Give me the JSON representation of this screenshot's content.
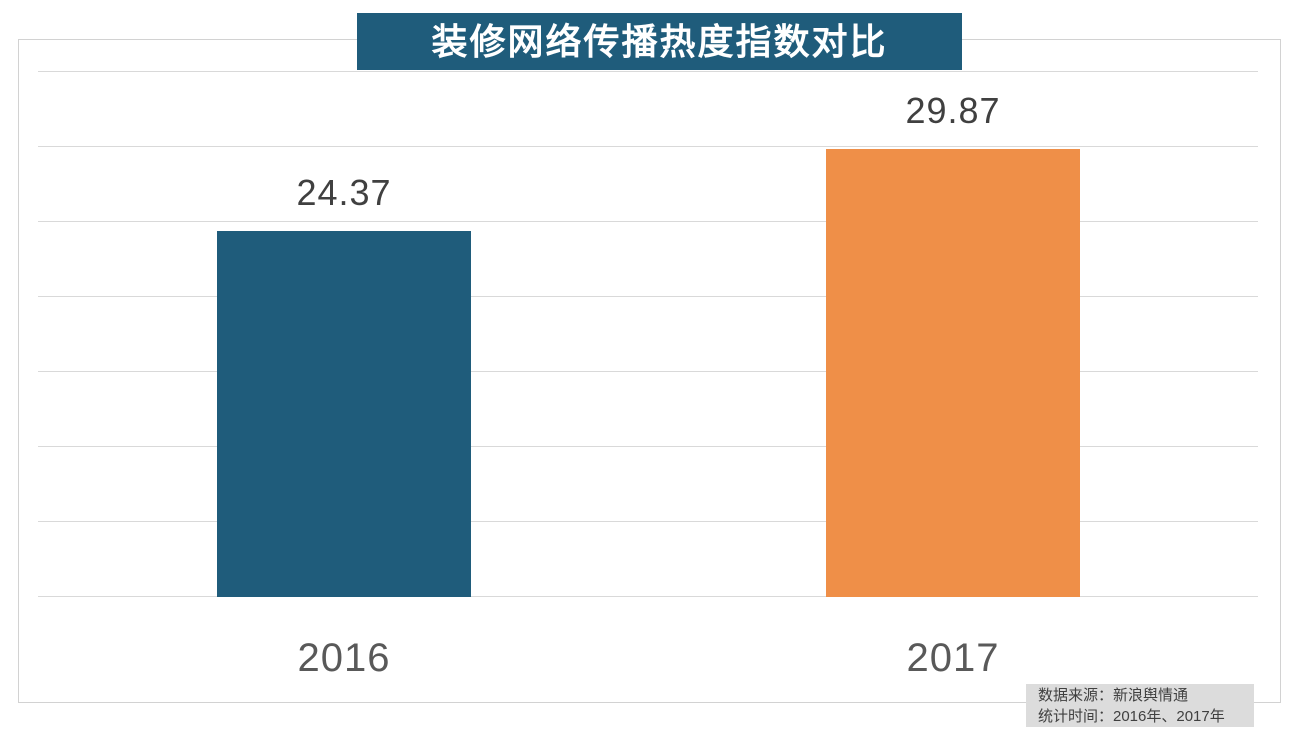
{
  "title": "装修网络传播热度指数对比",
  "chart_data": {
    "type": "bar",
    "title": "装修网络传播热度指数对比",
    "categories": [
      "2016",
      "2017"
    ],
    "values": [
      24.37,
      29.87
    ],
    "value_labels": [
      "24.37",
      "29.87"
    ],
    "series_colors": [
      "#1f5c7b",
      "#ef8f48"
    ],
    "xlabel": "",
    "ylabel": "",
    "ylim": [
      0,
      35
    ],
    "grid_step": 5,
    "grid": "horizontal-only",
    "legend_position": "none",
    "y_axis_tick_labels_visible": false
  },
  "colors": {
    "title_background": "#1f5c7b",
    "title_text": "#ffffff",
    "bar_2016": "#1f5c7b",
    "bar_2017": "#ef8f48",
    "gridline": "#d9d9d9",
    "frame_border": "#d2d2d2",
    "value_text": "#404040",
    "axis_text": "#595959",
    "footer_background": "#dcdcdc",
    "footer_text": "#404040",
    "page_background": "#ffffff"
  },
  "footer": {
    "source_line": "数据来源：新浪舆情通",
    "period_line": "统计时间：2016年、2017年"
  }
}
